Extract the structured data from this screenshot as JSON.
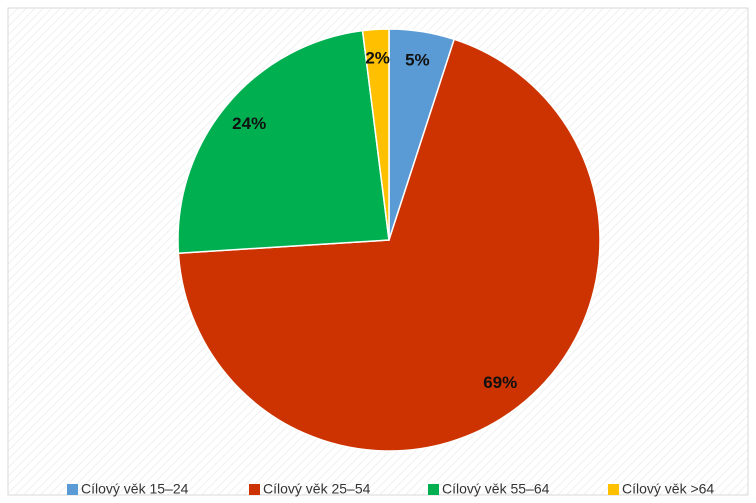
{
  "chart_data": {
    "type": "pie",
    "categories": [
      "Cílový věk 15–24",
      "Cílový věk 25–54",
      "Cílový věk 55–64",
      "Cílový věk >64"
    ],
    "values": [
      5,
      69,
      24,
      2
    ],
    "value_labels": [
      "5%",
      "69%",
      "24%",
      "2%"
    ],
    "colors": [
      "#5b9bd5",
      "#cc3300",
      "#00b050",
      "#ffc000"
    ],
    "legend": "bottom"
  }
}
